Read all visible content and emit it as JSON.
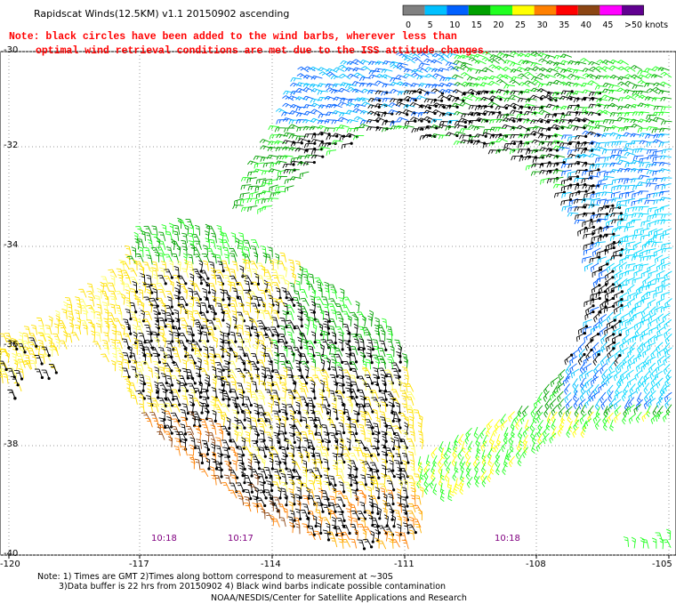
{
  "title": "Rapidscat Winds(12.5KM) v1.1 20150902 ascending",
  "notes": [
    "Note: black circles have been added to the wind barbs, wherever less than",
    "optimal wind retrieval conditions are met due to the ISS attitude changes."
  ],
  "colorbar": {
    "labels": [
      "0",
      "5",
      "10",
      "15",
      "20",
      "25",
      "30",
      "35",
      "40",
      "45",
      ">50 knots"
    ],
    "colors": [
      "#808080",
      "#00c0ff",
      "#0060ff",
      "#00a000",
      "#20ff20",
      "#ffff00",
      "#ff8000",
      "#ff0000",
      "#8b4513",
      "#ff00ff",
      "#600090"
    ]
  },
  "map": {
    "lat_labels": [
      "-30",
      "-32",
      "-34",
      "-36",
      "-38",
      "-40"
    ],
    "lon_labels": [
      "-120",
      "-117",
      "-114",
      "-111",
      "-108",
      "-105"
    ],
    "time_labels": [
      "10:18",
      "10:17",
      "10:18"
    ]
  },
  "footer": {
    "line1": "Note: 1) Times are GMT 2)Times along bottom correspond to measurement at ~30S",
    "line2": "3)Data buffer is 22 hrs from 20150902 4) Black wind barbs indicate possible contamination",
    "line3": "NOAA/NESDIS/Center for Satellite Applications and Research"
  }
}
